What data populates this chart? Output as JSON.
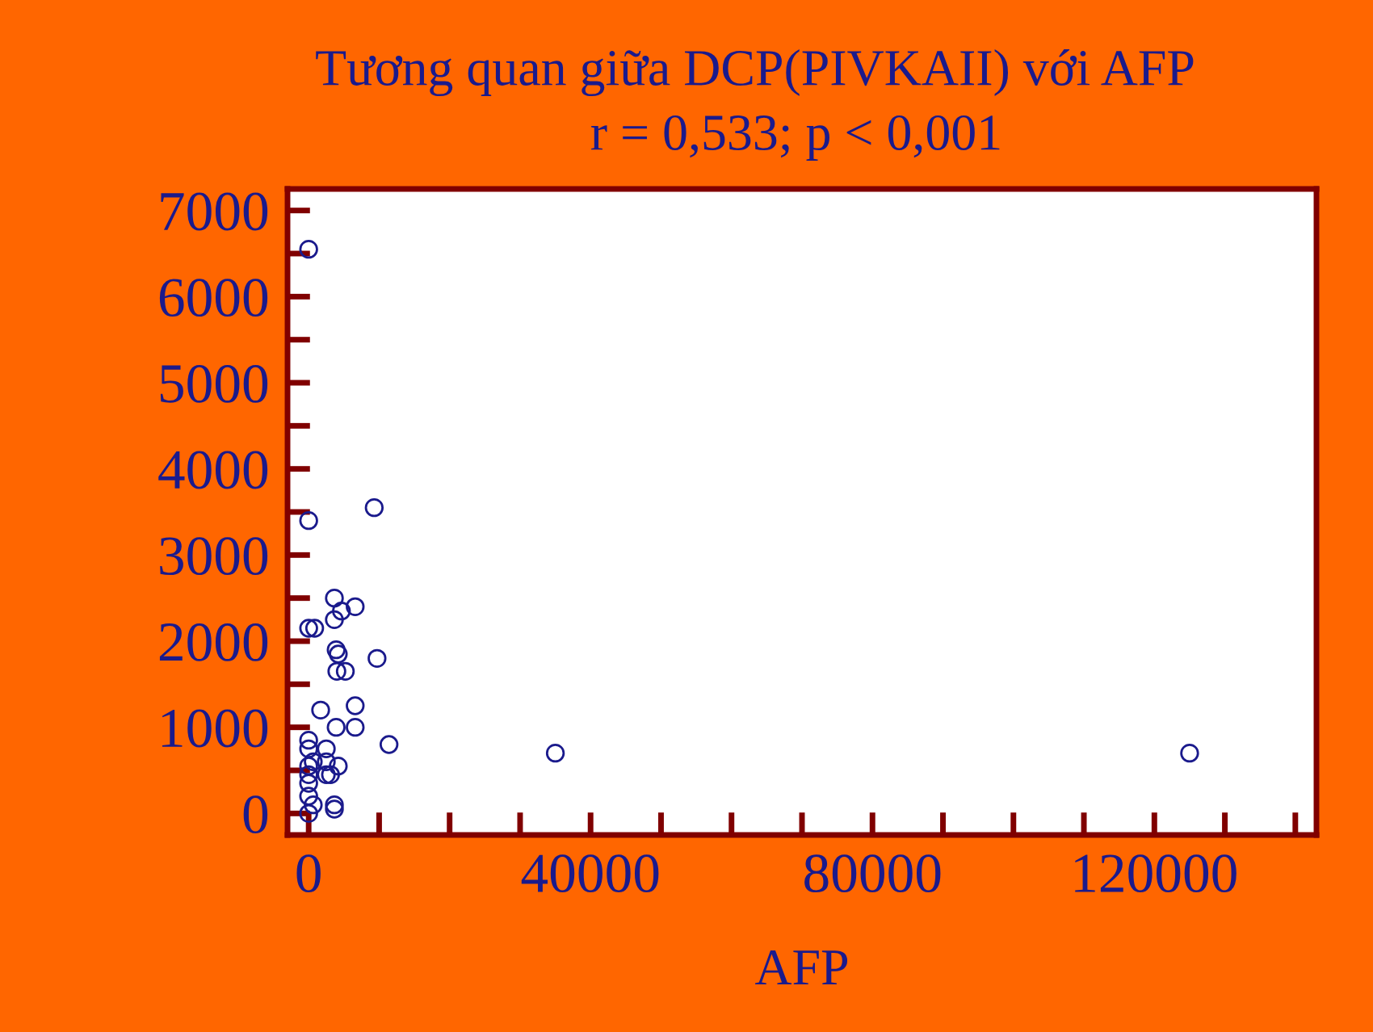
{
  "chart_data": {
    "type": "scatter",
    "title": "Tương quan giữa DCP(PIVKAII) với AFP",
    "subtitle": "r = 0,533; p < 0,001",
    "xlabel": "AFP",
    "x": [
      0,
      0,
      9300,
      3650,
      6600,
      4650,
      3650,
      0,
      850,
      3900,
      4200,
      9700,
      4000,
      5200,
      1700,
      6600,
      3900,
      6600,
      11400,
      35000,
      125000,
      0,
      0,
      2500,
      2500,
      4200,
      3100,
      2500,
      0,
      0,
      0,
      0,
      3650,
      3650,
      0,
      650,
      650
    ],
    "values": [
      6550,
      3400,
      3550,
      2500,
      2400,
      2350,
      2250,
      2150,
      2150,
      1900,
      1850,
      1800,
      1650,
      1650,
      1200,
      1250,
      1000,
      1000,
      800,
      700,
      700,
      850,
      750,
      750,
      600,
      550,
      450,
      450,
      550,
      450,
      350,
      200,
      100,
      50,
      0,
      100,
      600
    ],
    "color": "#1a1a8c",
    "marker": "circle",
    "xlim": [
      -3000,
      143000
    ],
    "ylim": [
      -250,
      7250
    ],
    "xticks": [
      0,
      {
        "value": 10000,
        "label": null
      },
      {
        "value": 20000,
        "label": null
      },
      {
        "value": 30000,
        "label": null
      },
      40000,
      {
        "value": 50000,
        "label": null
      },
      {
        "value": 60000,
        "label": null
      },
      {
        "value": 70000,
        "label": null
      },
      80000,
      {
        "value": 90000,
        "label": null
      },
      {
        "value": 100000,
        "label": null
      },
      {
        "value": 110000,
        "label": null
      },
      120000,
      {
        "value": 130000,
        "label": null
      },
      {
        "value": 140000,
        "label": null
      }
    ],
    "yticks": [
      0,
      {
        "value": 500,
        "label": null
      },
      1000,
      {
        "value": 1500,
        "label": null
      },
      2000,
      {
        "value": 2500,
        "label": null
      },
      3000,
      {
        "value": 3500,
        "label": null
      },
      4000,
      {
        "value": 4500,
        "label": null
      },
      5000,
      {
        "value": 5500,
        "label": null
      },
      6000,
      {
        "value": 6500,
        "label": null
      },
      7000
    ],
    "grid": false,
    "legend": false
  }
}
